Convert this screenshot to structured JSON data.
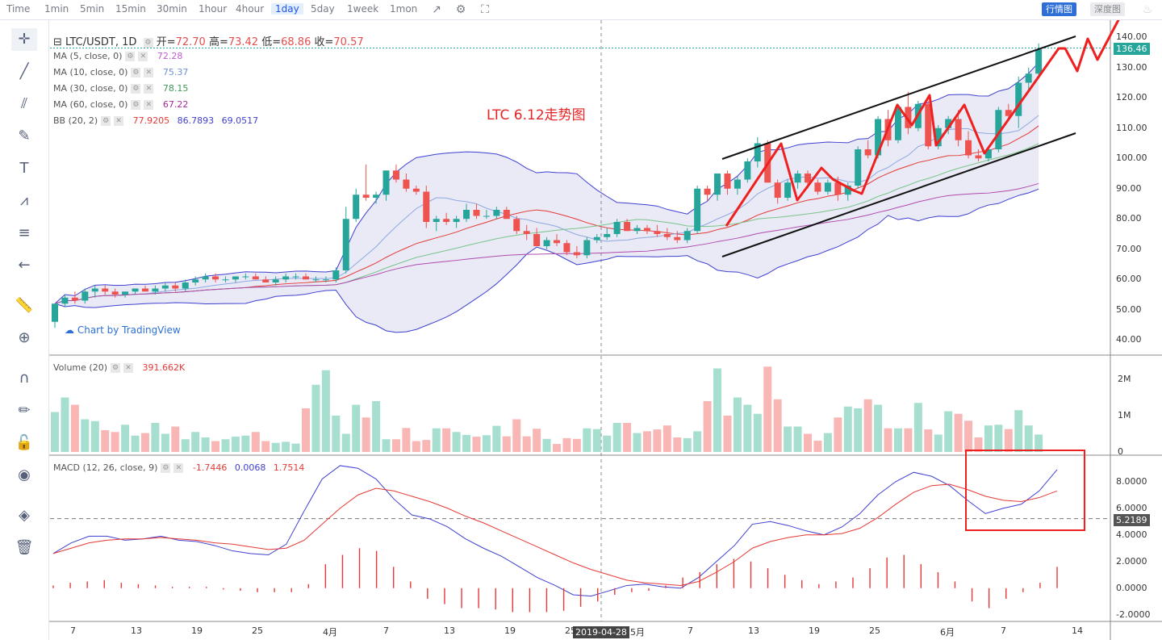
{
  "toolbar": {
    "timeframes": [
      "Time",
      "1min",
      "5min",
      "15min",
      "30min",
      "1hour",
      "4hour",
      "1day",
      "5day",
      "1week",
      "1mon"
    ],
    "active": "1day",
    "right_buttons": [
      "行情图",
      "深度图"
    ]
  },
  "legend": {
    "main": {
      "symbol": "LTC/USDT, 1D",
      "open_label": "开=",
      "open": "72.70",
      "high_label": "高=",
      "high": "73.42",
      "low_label": "低=",
      "low": "68.86",
      "close_label": "收=",
      "close": "70.57"
    },
    "ma5": {
      "label": "MA (5, close, 0)",
      "value": "72.28",
      "color": "#c15bd3"
    },
    "ma10": {
      "label": "MA (10, close, 0)",
      "value": "75.37",
      "color": "#6f8fd6"
    },
    "ma30": {
      "label": "MA (30, close, 0)",
      "value": "78.15",
      "color": "#3a9b57"
    },
    "ma60": {
      "label": "MA (60, close, 0)",
      "value": "67.22",
      "color": "#a52a9a"
    },
    "bb": {
      "label": "BB (20, 2)",
      "v1": "77.9205",
      "v2": "86.7893",
      "v3": "69.0517"
    },
    "volume": {
      "label": "Volume (20)",
      "value": "391.662K"
    },
    "macd": {
      "label": "MACD (12, 26, close, 9)",
      "v1": "-1.7446",
      "v2": "0.0068",
      "v3": "1.7514"
    }
  },
  "annotation": "LTC 6.12走势图",
  "watermark": "Chart by TradingView",
  "crosshair_date": "2019-04-28",
  "price_tag": "136.46",
  "macd_tag": "5.2189",
  "price_axis": [
    "140.00",
    "130.00",
    "120.00",
    "110.00",
    "100.00",
    "90.00",
    "80.00",
    "70.00",
    "60.00",
    "50.00",
    "40.00"
  ],
  "volume_axis": [
    "2M",
    "1M",
    "0"
  ],
  "macd_axis": [
    "8.0000",
    "6.0000",
    "4.0000",
    "2.0000",
    "0.0000",
    "-2.0000"
  ],
  "date_axis": [
    "7",
    "13",
    "19",
    "25",
    "4月",
    "7",
    "13",
    "19",
    "25",
    "5月",
    "7",
    "13",
    "19",
    "25",
    "6月",
    "7",
    "14"
  ],
  "chart_data": [
    {
      "type": "candlestick",
      "title": "LTC/USDT, 1D",
      "ylim": [
        35,
        143
      ],
      "series_note": "approximate daily OHLC read from chart",
      "candles": [
        [
          46,
          52,
          44,
          52
        ],
        [
          52,
          55,
          51,
          54
        ],
        [
          54,
          56,
          52,
          53
        ],
        [
          53,
          57,
          52,
          56
        ],
        [
          56,
          58,
          54,
          57
        ],
        [
          57,
          58,
          55,
          56
        ],
        [
          56,
          57,
          54,
          55
        ],
        [
          55,
          56,
          54,
          56
        ],
        [
          56,
          57,
          55,
          57
        ],
        [
          57,
          58,
          56,
          56
        ],
        [
          56,
          58,
          55,
          57
        ],
        [
          57,
          59,
          56,
          58
        ],
        [
          58,
          59,
          56,
          57
        ],
        [
          57,
          60,
          56,
          59
        ],
        [
          59,
          61,
          58,
          60
        ],
        [
          60,
          62,
          59,
          61
        ],
        [
          61,
          62,
          59,
          60
        ],
        [
          60,
          61,
          59,
          60
        ],
        [
          60,
          61,
          59,
          61
        ],
        [
          61,
          62,
          60,
          61
        ],
        [
          61,
          62,
          60,
          60
        ],
        [
          60,
          61,
          59,
          59
        ],
        [
          59,
          61,
          58,
          60
        ],
        [
          60,
          62,
          59,
          61
        ],
        [
          61,
          62,
          60,
          61
        ],
        [
          61,
          62,
          60,
          60
        ],
        [
          60,
          61,
          59,
          60
        ],
        [
          60,
          61,
          59,
          60
        ],
        [
          60,
          64,
          59,
          63
        ],
        [
          63,
          84,
          62,
          80
        ],
        [
          80,
          90,
          79,
          88
        ],
        [
          88,
          98,
          86,
          87
        ],
        [
          87,
          89,
          85,
          88
        ],
        [
          88,
          96,
          86,
          96
        ],
        [
          96,
          98,
          92,
          93
        ],
        [
          93,
          95,
          89,
          90
        ],
        [
          90,
          91,
          88,
          89
        ],
        [
          89,
          91,
          77,
          79
        ],
        [
          79,
          81,
          76,
          80
        ],
        [
          80,
          82,
          78,
          79
        ],
        [
          79,
          81,
          77,
          80
        ],
        [
          80,
          85,
          79,
          83
        ],
        [
          83,
          85,
          80,
          81
        ],
        [
          81,
          83,
          80,
          81
        ],
        [
          81,
          84,
          80,
          83
        ],
        [
          83,
          84,
          80,
          80
        ],
        [
          80,
          81,
          75,
          76
        ],
        [
          76,
          78,
          73,
          75
        ],
        [
          75,
          77,
          71,
          71
        ],
        [
          71,
          74,
          70,
          73
        ],
        [
          73,
          75,
          71,
          72
        ],
        [
          72,
          73,
          68,
          69
        ],
        [
          69,
          71,
          67,
          68
        ],
        [
          68,
          74,
          67,
          73
        ],
        [
          73,
          75,
          72,
          74
        ],
        [
          74,
          77,
          73,
          75
        ],
        [
          75,
          80,
          74,
          79
        ],
        [
          79,
          80,
          76,
          76
        ],
        [
          76,
          78,
          75,
          77
        ],
        [
          77,
          78,
          75,
          76
        ],
        [
          76,
          78,
          74,
          75
        ],
        [
          75,
          77,
          73,
          74
        ],
        [
          74,
          76,
          72,
          73
        ],
        [
          73,
          77,
          72,
          76
        ],
        [
          76,
          91,
          75,
          90
        ],
        [
          90,
          91,
          86,
          88
        ],
        [
          88,
          95,
          86,
          95
        ],
        [
          95,
          96,
          88,
          90
        ],
        [
          90,
          94,
          88,
          93
        ],
        [
          93,
          100,
          92,
          99
        ],
        [
          99,
          107,
          97,
          105
        ],
        [
          105,
          106,
          92,
          92
        ],
        [
          92,
          93,
          85,
          87
        ],
        [
          87,
          93,
          86,
          92
        ],
        [
          92,
          96,
          90,
          95
        ],
        [
          95,
          96,
          90,
          92
        ],
        [
          92,
          93,
          88,
          89
        ],
        [
          89,
          93,
          88,
          92
        ],
        [
          92,
          94,
          86,
          88
        ],
        [
          88,
          92,
          86,
          91
        ],
        [
          91,
          104,
          90,
          103
        ],
        [
          103,
          106,
          100,
          101
        ],
        [
          101,
          114,
          100,
          113
        ],
        [
          113,
          116,
          104,
          106
        ],
        [
          106,
          118,
          105,
          117
        ],
        [
          117,
          122,
          108,
          110
        ],
        [
          110,
          119,
          109,
          118
        ],
        [
          118,
          119,
          103,
          104
        ],
        [
          104,
          111,
          103,
          110
        ],
        [
          110,
          114,
          108,
          113
        ],
        [
          113,
          116,
          104,
          106
        ],
        [
          106,
          109,
          100,
          101
        ],
        [
          101,
          103,
          99,
          100
        ],
        [
          100,
          103,
          99,
          103
        ],
        [
          103,
          117,
          102,
          116
        ],
        [
          116,
          118,
          113,
          114
        ],
        [
          114,
          127,
          110,
          125
        ],
        [
          125,
          130,
          122,
          128
        ],
        [
          128,
          138,
          127,
          136
        ]
      ]
    },
    {
      "type": "bar",
      "title": "Volume (20)",
      "ylim": [
        0,
        2400000
      ],
      "values": [
        1100000,
        1500000,
        1300000,
        900000,
        850000,
        600000,
        550000,
        750000,
        450000,
        520000,
        800000,
        500000,
        700000,
        350000,
        550000,
        400000,
        300000,
        350000,
        420000,
        450000,
        550000,
        300000,
        250000,
        280000,
        230000,
        1200000,
        1850000,
        2250000,
        1000000,
        500000,
        1300000,
        950000,
        1400000,
        350000,
        350000,
        660000,
        300000,
        330000,
        650000,
        650000,
        550000,
        470000,
        420000,
        460000,
        720000,
        430000,
        900000,
        430000,
        640000,
        360000,
        220000,
        380000,
        360000,
        650000,
        630000,
        450000,
        800000,
        800000,
        520000,
        570000,
        620000,
        730000,
        400000,
        380000,
        570000,
        1400000,
        2300000,
        1000000,
        1500000,
        1300000,
        1050000,
        2350000,
        1450000,
        700000,
        700000,
        500000,
        310000,
        520000,
        950000,
        1250000,
        1200000,
        1450000,
        1300000,
        650000,
        650000,
        650000,
        1350000,
        620000,
        480000,
        1120000,
        1050000,
        860000,
        400000,
        730000,
        750000,
        630000,
        1150000,
        730000,
        480000
      ],
      "value_label": "391.662K"
    },
    {
      "type": "line",
      "title": "MACD (12, 26, close, 9)",
      "ylim": [
        -2.5,
        9.5
      ],
      "series": [
        {
          "name": "MACD",
          "values": [
            2.6,
            3.4,
            3.9,
            3.9,
            3.6,
            3.7,
            3.9,
            3.6,
            3.5,
            3.2,
            2.8,
            2.6,
            2.5,
            3.3,
            5.8,
            8.2,
            9.2,
            9.0,
            8.2,
            6.7,
            5.5,
            5.2,
            4.6,
            3.7,
            3.0,
            2.4,
            1.6,
            0.8,
            0.2,
            -0.5,
            -0.6,
            -0.2,
            0.2,
            0.3,
            0.1,
            0.0,
            0.8,
            2.0,
            3.2,
            4.8,
            5.0,
            4.7,
            4.3,
            4.0,
            4.6,
            5.6,
            7.0,
            8.0,
            8.7,
            8.4,
            7.7,
            6.6,
            5.6,
            6.0,
            6.3,
            7.3,
            8.9
          ]
        },
        {
          "name": "Signal",
          "values": [
            2.6,
            3.0,
            3.4,
            3.6,
            3.7,
            3.7,
            3.8,
            3.7,
            3.6,
            3.4,
            3.3,
            3.1,
            2.9,
            3.0,
            3.6,
            4.8,
            6.0,
            7.0,
            7.5,
            7.3,
            6.9,
            6.5,
            6.0,
            5.4,
            4.9,
            4.3,
            3.7,
            3.1,
            2.5,
            1.9,
            1.4,
            1.0,
            0.6,
            0.4,
            0.3,
            0.2,
            0.5,
            1.2,
            2.0,
            3.0,
            3.5,
            3.8,
            4.0,
            4.0,
            4.1,
            4.5,
            5.3,
            6.3,
            7.2,
            7.7,
            7.8,
            7.4,
            6.9,
            6.6,
            6.5,
            6.8,
            7.3
          ]
        }
      ],
      "histogram": [
        0.2,
        0.4,
        0.5,
        0.6,
        0.4,
        0.3,
        0.2,
        0.1,
        0.1,
        0.1,
        -0.1,
        -0.2,
        -0.3,
        -0.3,
        -0.3,
        0.3,
        1.8,
        2.5,
        3.0,
        2.8,
        1.6,
        0.5,
        -0.8,
        -1.2,
        -1.5,
        -1.5,
        -1.6,
        -1.8,
        -1.8,
        -1.8,
        -1.7,
        -1.4,
        -1.0,
        -0.5,
        -0.3,
        -0.2,
        0.2,
        0.8,
        1.2,
        1.8,
        2.2,
        2.0,
        1.5,
        1.0,
        0.6,
        0.3,
        0.5,
        0.8,
        1.5,
        2.3,
        2.5,
        1.8,
        1.2,
        0.5,
        -1.0,
        -1.5,
        -0.8,
        -0.3,
        0.4,
        1.6
      ]
    }
  ]
}
